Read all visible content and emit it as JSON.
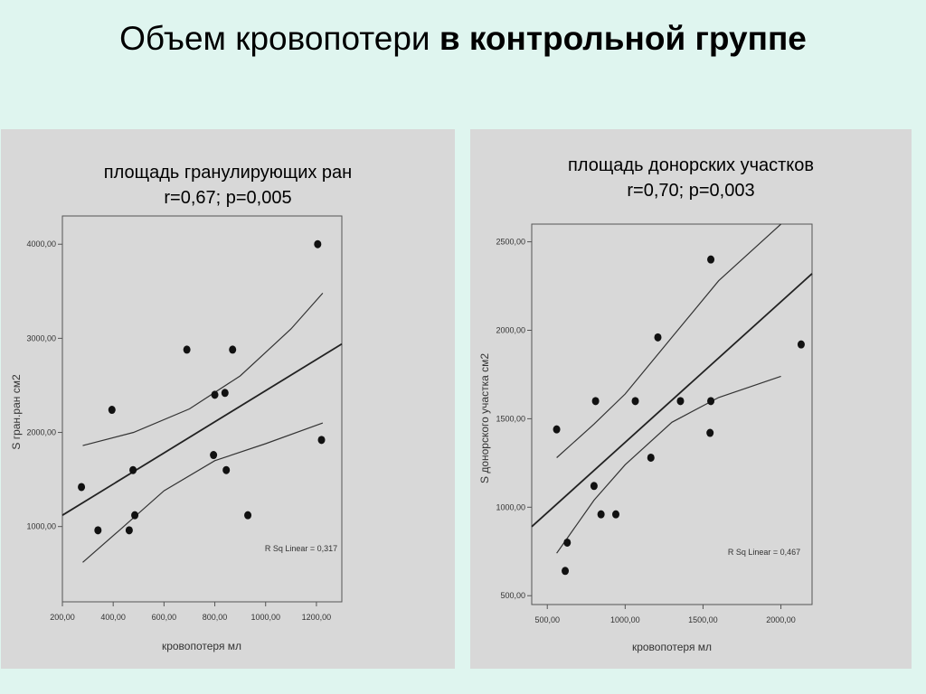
{
  "slide": {
    "title_regular": "Объем кровопотери ",
    "title_bold": "в контрольной группе"
  },
  "chart_data": [
    {
      "type": "scatter",
      "title": "площадь гранулирующих ран",
      "subtitle": "r=0,67; p=0,005",
      "xlabel": "кровопотеря мл",
      "ylabel": "S гран.ран см2",
      "xlim": [
        200,
        1300
      ],
      "ylim": [
        200,
        4300
      ],
      "xticks": [
        200,
        400,
        600,
        800,
        1000,
        1200
      ],
      "xtick_labels": [
        "200,00",
        "400,00",
        "600,00",
        "800,00",
        "1000,00",
        "1200,00"
      ],
      "yticks": [
        1000,
        2000,
        3000,
        4000
      ],
      "ytick_labels": [
        "1000,00",
        "2000,00",
        "3000,00",
        "4000,00"
      ],
      "annotation": "R Sq Linear = 0,317",
      "points": [
        {
          "x": 275,
          "y": 1420
        },
        {
          "x": 340,
          "y": 960
        },
        {
          "x": 395,
          "y": 2240
        },
        {
          "x": 463,
          "y": 960
        },
        {
          "x": 478,
          "y": 1600
        },
        {
          "x": 485,
          "y": 1120
        },
        {
          "x": 690,
          "y": 2880
        },
        {
          "x": 795,
          "y": 1760
        },
        {
          "x": 800,
          "y": 2400
        },
        {
          "x": 840,
          "y": 2420
        },
        {
          "x": 845,
          "y": 1600
        },
        {
          "x": 870,
          "y": 2880
        },
        {
          "x": 930,
          "y": 1120
        },
        {
          "x": 1205,
          "y": 4000
        },
        {
          "x": 1220,
          "y": 1920
        }
      ],
      "fit_line": [
        [
          200,
          1120
        ],
        [
          1300,
          2940
        ]
      ],
      "ci_upper": [
        [
          280,
          1860
        ],
        [
          480,
          2000
        ],
        [
          700,
          2250
        ],
        [
          900,
          2600
        ],
        [
          1100,
          3100
        ],
        [
          1225,
          3480
        ]
      ],
      "ci_lower": [
        [
          280,
          620
        ],
        [
          420,
          950
        ],
        [
          600,
          1380
        ],
        [
          800,
          1700
        ],
        [
          1000,
          1880
        ],
        [
          1225,
          2100
        ]
      ]
    },
    {
      "type": "scatter",
      "title": "площадь донорских участков",
      "subtitle": "r=0,70; p=0,003",
      "xlabel": "кровопотеря мл",
      "ylabel": "S донорского участка см2",
      "xlim": [
        400,
        2200
      ],
      "ylim": [
        450,
        2600
      ],
      "xticks": [
        500,
        1000,
        1500,
        2000
      ],
      "xtick_labels": [
        "500,00",
        "1000,00",
        "1500,00",
        "2000,00"
      ],
      "yticks": [
        500,
        1000,
        1500,
        2000,
        2500
      ],
      "ytick_labels": [
        "500,00",
        "1000,00",
        "1500,00",
        "2000,00",
        "2500,00"
      ],
      "annotation": "R Sq Linear = 0,467",
      "points": [
        {
          "x": 560,
          "y": 1440
        },
        {
          "x": 615,
          "y": 640
        },
        {
          "x": 628,
          "y": 800
        },
        {
          "x": 800,
          "y": 1120
        },
        {
          "x": 810,
          "y": 1600
        },
        {
          "x": 845,
          "y": 960
        },
        {
          "x": 940,
          "y": 960
        },
        {
          "x": 1065,
          "y": 1600
        },
        {
          "x": 1165,
          "y": 1280
        },
        {
          "x": 1210,
          "y": 1960
        },
        {
          "x": 1355,
          "y": 1600
        },
        {
          "x": 1545,
          "y": 1420
        },
        {
          "x": 1550,
          "y": 1600
        },
        {
          "x": 1550,
          "y": 2400
        },
        {
          "x": 2130,
          "y": 1920
        }
      ],
      "fit_line": [
        [
          400,
          890
        ],
        [
          2200,
          2320
        ]
      ],
      "ci_upper": [
        [
          560,
          1280
        ],
        [
          800,
          1470
        ],
        [
          1000,
          1640
        ],
        [
          1300,
          1960
        ],
        [
          1600,
          2280
        ],
        [
          2000,
          2600
        ]
      ],
      "ci_lower": [
        [
          560,
          740
        ],
        [
          800,
          1040
        ],
        [
          1000,
          1240
        ],
        [
          1300,
          1480
        ],
        [
          1600,
          1620
        ],
        [
          2000,
          1740
        ]
      ]
    }
  ]
}
